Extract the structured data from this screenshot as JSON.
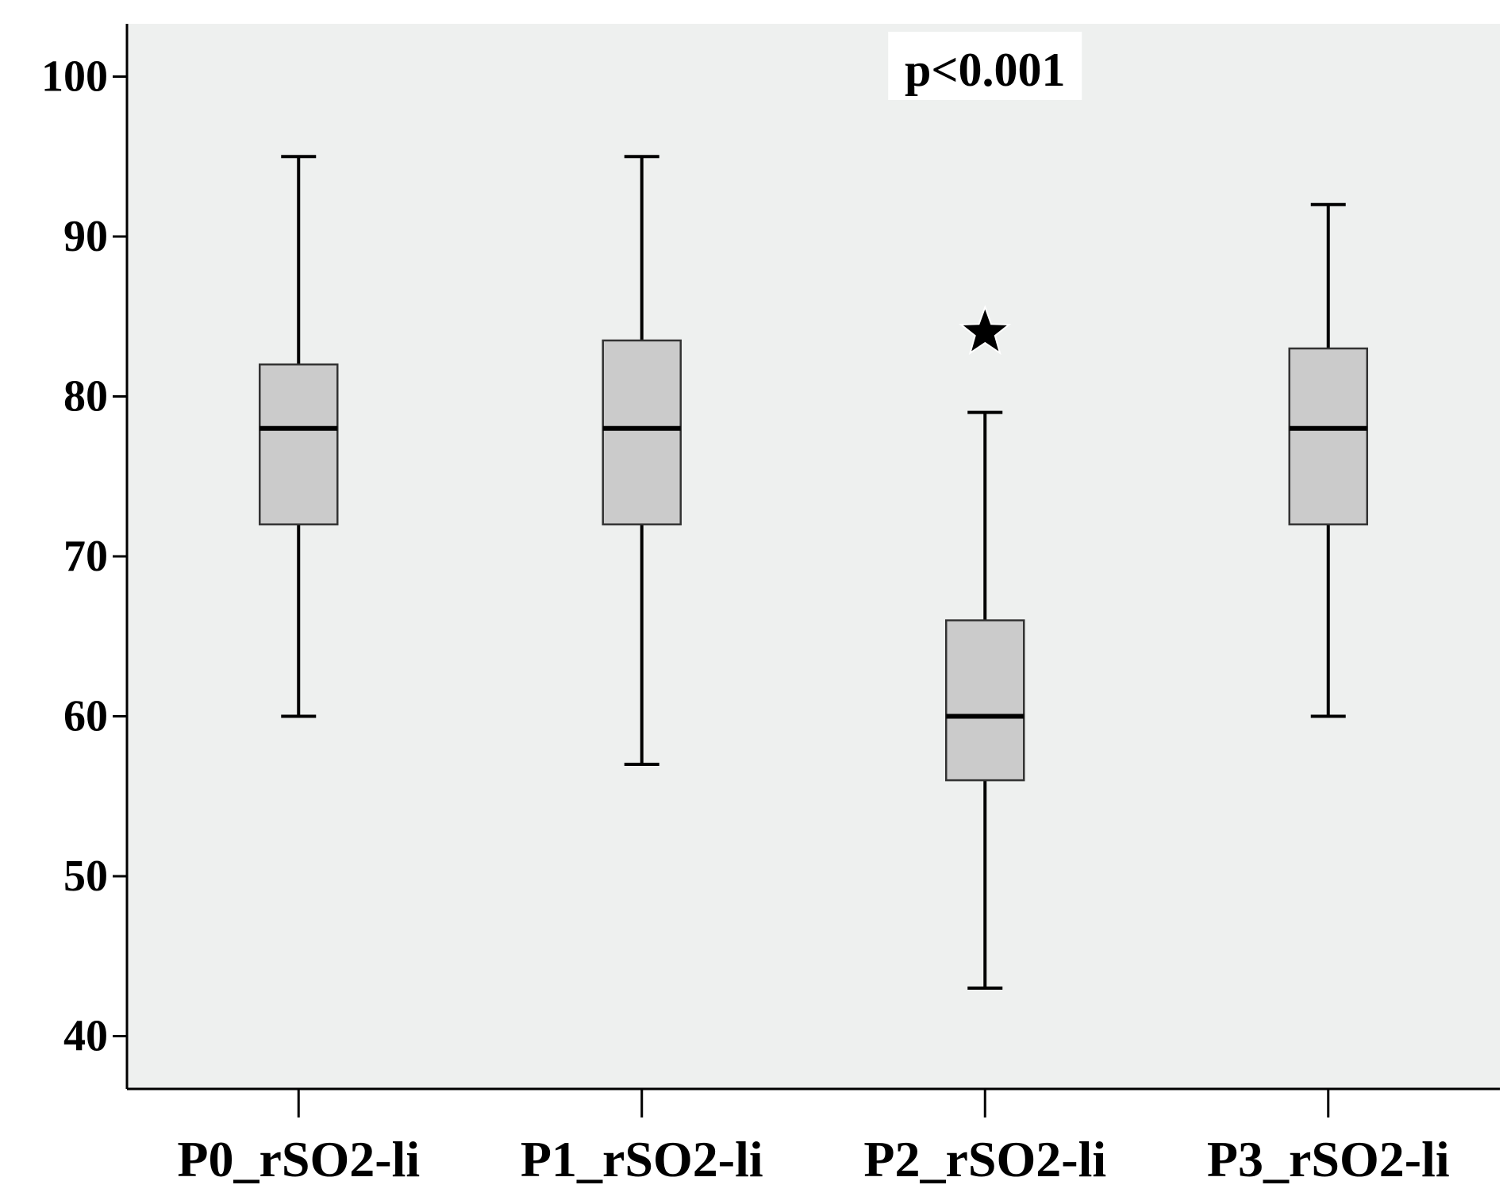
{
  "chart_data": {
    "type": "boxplot",
    "title": "",
    "xlabel": "",
    "ylabel": "",
    "ylim": [
      36.7,
      103.3
    ],
    "yticks": [
      40,
      50,
      60,
      70,
      80,
      90,
      100
    ],
    "grid": false,
    "annotation": "p<0.001",
    "categories": [
      "P0_rSO2-li",
      "P1_rSO2-li",
      "P2_rSO2-li",
      "P3_rSO2-li"
    ],
    "boxes": [
      {
        "category": "P0_rSO2-li",
        "whisker_low": 60,
        "q1": 72,
        "median": 78,
        "q3": 82,
        "whisker_high": 95,
        "outliers": []
      },
      {
        "category": "P1_rSO2-li",
        "whisker_low": 57,
        "q1": 72,
        "median": 78,
        "q3": 83.5,
        "whisker_high": 95,
        "outliers": []
      },
      {
        "category": "P2_rSO2-li",
        "whisker_low": 43,
        "q1": 56,
        "median": 60,
        "q3": 66,
        "whisker_high": 79,
        "outliers": [
          84
        ]
      },
      {
        "category": "P3_rSO2-li",
        "whisker_low": 60,
        "q1": 72,
        "median": 78,
        "q3": 83,
        "whisker_high": 92,
        "outliers": []
      }
    ],
    "colors": {
      "plot_background": "#eef0ef",
      "box_fill": "#cbcbcb",
      "line": "#000000"
    }
  }
}
